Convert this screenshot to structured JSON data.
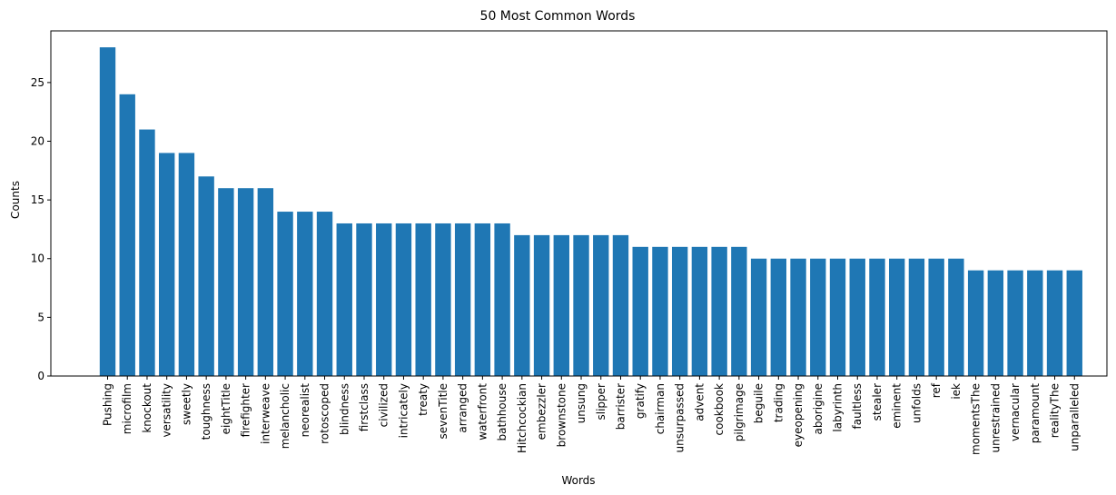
{
  "chart_data": {
    "type": "bar",
    "title": "50 Most Common Words",
    "xlabel": "Words",
    "ylabel": "Counts",
    "ylim": [
      0,
      29.4
    ],
    "yticks": [
      0,
      5,
      10,
      15,
      20,
      25
    ],
    "grid": false,
    "color": "#1f77b4",
    "categories": [
      "Pushing",
      "microfilm",
      "knockout",
      "versatility",
      "sweetly",
      "toughness",
      "eightTitle",
      "firefighter",
      "interweave",
      "melancholic",
      "neorealist",
      "rotoscoped",
      "blindness",
      "firstclass",
      "civilized",
      "intricately",
      "treaty",
      "sevenTitle",
      "arranged",
      "waterfront",
      "bathhouse",
      "Hitchcockian",
      "embezzler",
      "brownstone",
      "unsung",
      "slipper",
      "barrister",
      "gratify",
      "chairman",
      "unsurpassed",
      "advent",
      "cookbook",
      "pilgrimage",
      "beguile",
      "trading",
      "eyeopening",
      "aborigine",
      "labyrinth",
      "faultless",
      "stealer",
      "eminent",
      "unfolds",
      "ref",
      "iek",
      "momentsThe",
      "unrestrained",
      "vernacular",
      "paramount",
      "realityThe",
      "unparalleled"
    ],
    "values": [
      28,
      24,
      21,
      19,
      19,
      17,
      16,
      16,
      16,
      14,
      14,
      14,
      13,
      13,
      13,
      13,
      13,
      13,
      13,
      13,
      13,
      12,
      12,
      12,
      12,
      12,
      12,
      11,
      11,
      11,
      11,
      11,
      11,
      10,
      10,
      10,
      10,
      10,
      10,
      10,
      10,
      10,
      10,
      10,
      9,
      9,
      9,
      9,
      9,
      9
    ]
  }
}
